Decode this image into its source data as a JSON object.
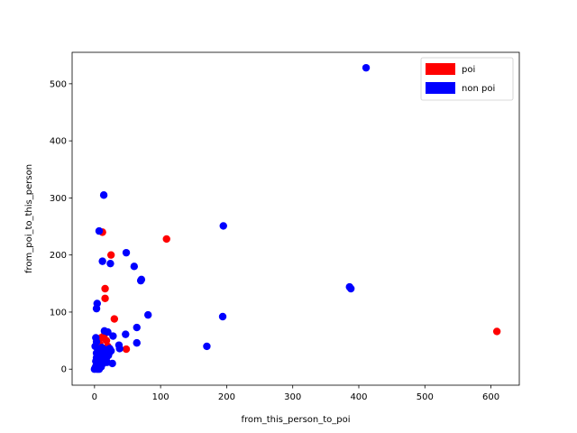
{
  "chart_data": {
    "type": "scatter",
    "title": "",
    "xlabel": "from_this_person_to_poi",
    "ylabel": "from_poi_to_this_person",
    "xlim": [
      -33.9,
      642.9
    ],
    "ylim": [
      -28.1,
      555.1
    ],
    "xticks": [
      0,
      100,
      200,
      300,
      400,
      500,
      600
    ],
    "yticks": [
      0,
      100,
      200,
      300,
      400,
      500
    ],
    "grid": false,
    "legend_position": "top-right",
    "series": [
      {
        "name": "poi",
        "color": "#ff0000",
        "points": [
          [
            12,
            240
          ],
          [
            25,
            200
          ],
          [
            109,
            228
          ],
          [
            16,
            141
          ],
          [
            16,
            124
          ],
          [
            30,
            88
          ],
          [
            609,
            66
          ],
          [
            48,
            35
          ],
          [
            10,
            55
          ],
          [
            14,
            58
          ],
          [
            6,
            48
          ],
          [
            8,
            44
          ],
          [
            18,
            50
          ],
          [
            20,
            40
          ],
          [
            11,
            30
          ]
        ]
      },
      {
        "name": "non poi",
        "color": "#0000ff",
        "points": [
          [
            411,
            528
          ],
          [
            14,
            305
          ],
          [
            195,
            251
          ],
          [
            7,
            242
          ],
          [
            48,
            204
          ],
          [
            12,
            189
          ],
          [
            24,
            185
          ],
          [
            60,
            180
          ],
          [
            71,
            157
          ],
          [
            70,
            155
          ],
          [
            386,
            144
          ],
          [
            388,
            141
          ],
          [
            4,
            115
          ],
          [
            3,
            106
          ],
          [
            81,
            95
          ],
          [
            194,
            92
          ],
          [
            64,
            73
          ],
          [
            15,
            67
          ],
          [
            20,
            65
          ],
          [
            28,
            58
          ],
          [
            47,
            61
          ],
          [
            64,
            46
          ],
          [
            170,
            40
          ],
          [
            37,
            42
          ],
          [
            38,
            36
          ],
          [
            27,
            10
          ],
          [
            2,
            55
          ],
          [
            3,
            48
          ],
          [
            1,
            40
          ],
          [
            5,
            35
          ],
          [
            8,
            30
          ],
          [
            9,
            25
          ],
          [
            12,
            22
          ],
          [
            14,
            18
          ],
          [
            18,
            20
          ],
          [
            22,
            28
          ],
          [
            25,
            32
          ],
          [
            3,
            20
          ],
          [
            4,
            12
          ],
          [
            6,
            8
          ],
          [
            2,
            5
          ],
          [
            1,
            2
          ],
          [
            0,
            0
          ],
          [
            4,
            0
          ],
          [
            7,
            0
          ],
          [
            10,
            4
          ],
          [
            13,
            10
          ],
          [
            16,
            14
          ],
          [
            3,
            28
          ],
          [
            6,
            22
          ],
          [
            9,
            15
          ],
          [
            11,
            38
          ],
          [
            17,
            34
          ],
          [
            21,
            24
          ],
          [
            2,
            14
          ],
          [
            5,
            18
          ],
          [
            8,
            6
          ],
          [
            15,
            26
          ],
          [
            19,
            12
          ],
          [
            23,
            36
          ]
        ]
      }
    ]
  }
}
